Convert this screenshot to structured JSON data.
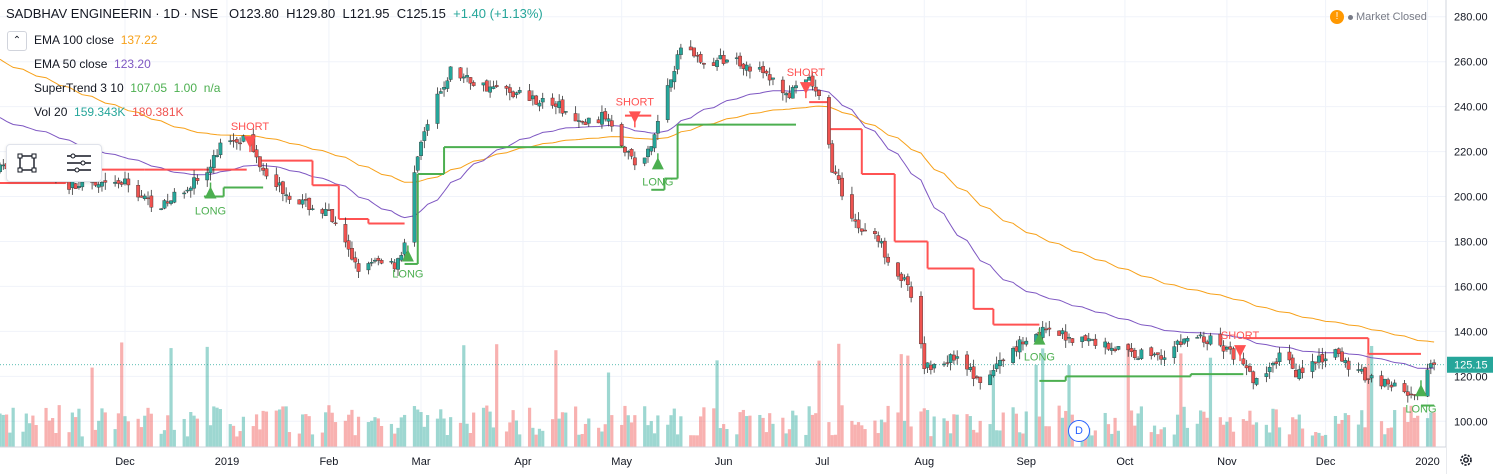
{
  "header": {
    "symbol": "SADBHAV ENGINEERIN · 1D · NSE",
    "o_label": "O",
    "o_value": "123.80",
    "h_label": "H",
    "h_value": "129.80",
    "l_label": "L",
    "l_value": "121.95",
    "c_label": "C",
    "c_value": "125.15",
    "change": "+1.40 (+1.13%)"
  },
  "indicators": [
    {
      "name": "EMA 100 close",
      "value": "137.22",
      "color": "#f7a11a"
    },
    {
      "name": "EMA 50 close",
      "value": "123.20",
      "color": "#7e57c2"
    },
    {
      "name": "SuperTrend 3 10",
      "value": "107.05",
      "value2": "1.00",
      "value3": "n/a",
      "color": "#4caf50"
    },
    {
      "name": "Vol 20",
      "value": "159.343K",
      "value2": "180.381K",
      "color": "#26a69a",
      "color2": "#ef5350"
    }
  ],
  "market_status": "Market Closed",
  "last_price_label": "125.15",
  "colors": {
    "up": "#26a69a",
    "down": "#ef5350",
    "ema100": "#f7a11a",
    "ema50": "#7e57c2",
    "supertrend_up": "#4caf50",
    "supertrend_down": "#ff5252",
    "grid": "#f0f3fa"
  },
  "icons": [
    "collapse-icon",
    "rectangle-tool-icon",
    "menu-lines-icon",
    "warning-icon",
    "settings-gear-icon",
    "dividend-badge"
  ],
  "dividend_badge": "D",
  "chart_data": {
    "type": "candlestick",
    "title": "SADBHAV ENGINEERIN · 1D · NSE",
    "y_ticks": [
      "280.00",
      "260.00",
      "240.00",
      "220.00",
      "200.00",
      "180.00",
      "160.00",
      "140.00",
      "120.00",
      "100.00"
    ],
    "ylim": [
      93,
      283
    ],
    "x_ticks": [
      "Dec",
      "2019",
      "Feb",
      "Mar",
      "Apr",
      "May",
      "Jun",
      "Jul",
      "Aug",
      "Sep",
      "Oct",
      "Nov",
      "Dec",
      "2020"
    ],
    "x_tick_days": [
      38,
      69,
      100,
      128,
      159,
      189,
      220,
      250,
      281,
      312,
      342,
      373,
      403,
      434
    ],
    "x_range_days": [
      0,
      439
    ],
    "price_anchors": [
      {
        "d": 0,
        "p": 212
      },
      {
        "d": 10,
        "p": 220
      },
      {
        "d": 20,
        "p": 205
      },
      {
        "d": 30,
        "p": 204
      },
      {
        "d": 38,
        "p": 206
      },
      {
        "d": 45,
        "p": 198
      },
      {
        "d": 50,
        "p": 196
      },
      {
        "d": 57,
        "p": 205
      },
      {
        "d": 63,
        "p": 210
      },
      {
        "d": 68,
        "p": 226
      },
      {
        "d": 74,
        "p": 226
      },
      {
        "d": 80,
        "p": 213
      },
      {
        "d": 86,
        "p": 203
      },
      {
        "d": 92,
        "p": 197
      },
      {
        "d": 100,
        "p": 192
      },
      {
        "d": 106,
        "p": 175
      },
      {
        "d": 110,
        "p": 167
      },
      {
        "d": 116,
        "p": 172
      },
      {
        "d": 120,
        "p": 170
      },
      {
        "d": 123,
        "p": 178
      },
      {
        "d": 127,
        "p": 220
      },
      {
        "d": 132,
        "p": 240
      },
      {
        "d": 137,
        "p": 256
      },
      {
        "d": 145,
        "p": 250
      },
      {
        "d": 160,
        "p": 245
      },
      {
        "d": 170,
        "p": 240
      },
      {
        "d": 176,
        "p": 232
      },
      {
        "d": 185,
        "p": 236
      },
      {
        "d": 190,
        "p": 222
      },
      {
        "d": 194,
        "p": 212
      },
      {
        "d": 198,
        "p": 222
      },
      {
        "d": 203,
        "p": 250
      },
      {
        "d": 208,
        "p": 270
      },
      {
        "d": 214,
        "p": 258
      },
      {
        "d": 222,
        "p": 262
      },
      {
        "d": 232,
        "p": 255
      },
      {
        "d": 240,
        "p": 245
      },
      {
        "d": 246,
        "p": 252
      },
      {
        "d": 250,
        "p": 240
      },
      {
        "d": 253,
        "p": 213
      },
      {
        "d": 257,
        "p": 198
      },
      {
        "d": 261,
        "p": 186
      },
      {
        "d": 266,
        "p": 183
      },
      {
        "d": 272,
        "p": 168
      },
      {
        "d": 276,
        "p": 160
      },
      {
        "d": 279,
        "p": 140
      },
      {
        "d": 281,
        "p": 124
      },
      {
        "d": 286,
        "p": 126
      },
      {
        "d": 292,
        "p": 130
      },
      {
        "d": 298,
        "p": 115
      },
      {
        "d": 302,
        "p": 123
      },
      {
        "d": 310,
        "p": 135
      },
      {
        "d": 316,
        "p": 140
      },
      {
        "d": 324,
        "p": 138
      },
      {
        "d": 334,
        "p": 135
      },
      {
        "d": 344,
        "p": 130
      },
      {
        "d": 354,
        "p": 130
      },
      {
        "d": 362,
        "p": 138
      },
      {
        "d": 370,
        "p": 135
      },
      {
        "d": 376,
        "p": 128
      },
      {
        "d": 381,
        "p": 118
      },
      {
        "d": 386,
        "p": 122
      },
      {
        "d": 390,
        "p": 133
      },
      {
        "d": 394,
        "p": 122
      },
      {
        "d": 400,
        "p": 126
      },
      {
        "d": 406,
        "p": 130
      },
      {
        "d": 412,
        "p": 122
      },
      {
        "d": 420,
        "p": 118
      },
      {
        "d": 428,
        "p": 113
      },
      {
        "d": 431,
        "p": 110
      },
      {
        "d": 434,
        "p": 122
      },
      {
        "d": 436,
        "p": 125.15
      }
    ],
    "supertrend": [
      {
        "d1": 0,
        "d2": 20,
        "v": 206,
        "trend": "down"
      },
      {
        "d1": 20,
        "d2": 44,
        "v": 212,
        "trend": "down"
      },
      {
        "d1": 44,
        "d2": 62,
        "v": 212,
        "trend": "down"
      },
      {
        "d1": 62,
        "d2": 75,
        "v": 212,
        "trend": "down"
      },
      {
        "d1": 62,
        "d2": 68,
        "v": 200,
        "trend": "up"
      },
      {
        "d1": 68,
        "d2": 80,
        "v": 204,
        "trend": "up"
      },
      {
        "d1": 79,
        "d2": 95,
        "v": 216,
        "trend": "down"
      },
      {
        "d1": 95,
        "d2": 103,
        "v": 205,
        "trend": "down"
      },
      {
        "d1": 103,
        "d2": 112,
        "v": 190,
        "trend": "down"
      },
      {
        "d1": 112,
        "d2": 123,
        "v": 188,
        "trend": "down"
      },
      {
        "d1": 123,
        "d2": 127,
        "v": 170,
        "trend": "up"
      },
      {
        "d1": 127,
        "d2": 135,
        "v": 210,
        "trend": "up"
      },
      {
        "d1": 135,
        "d2": 190,
        "v": 222,
        "trend": "up"
      },
      {
        "d1": 190,
        "d2": 198,
        "v": 236,
        "trend": "down"
      },
      {
        "d1": 198,
        "d2": 202,
        "v": 203,
        "trend": "up"
      },
      {
        "d1": 202,
        "d2": 206,
        "v": 208,
        "trend": "up"
      },
      {
        "d1": 206,
        "d2": 242,
        "v": 232,
        "trend": "up"
      },
      {
        "d1": 246,
        "d2": 252,
        "v": 242,
        "trend": "down"
      },
      {
        "d1": 252,
        "d2": 262,
        "v": 230,
        "trend": "down"
      },
      {
        "d1": 262,
        "d2": 272,
        "v": 210,
        "trend": "down"
      },
      {
        "d1": 272,
        "d2": 282,
        "v": 180,
        "trend": "down"
      },
      {
        "d1": 282,
        "d2": 296,
        "v": 168,
        "trend": "down"
      },
      {
        "d1": 296,
        "d2": 302,
        "v": 150,
        "trend": "down"
      },
      {
        "d1": 302,
        "d2": 316,
        "v": 143,
        "trend": "down"
      },
      {
        "d1": 316,
        "d2": 324,
        "v": 118,
        "trend": "up"
      },
      {
        "d1": 324,
        "d2": 362,
        "v": 120,
        "trend": "up"
      },
      {
        "d1": 362,
        "d2": 378,
        "v": 121,
        "trend": "up"
      },
      {
        "d1": 378,
        "d2": 416,
        "v": 137,
        "trend": "down"
      },
      {
        "d1": 416,
        "d2": 432,
        "v": 130,
        "trend": "down"
      },
      {
        "d1": 432,
        "d2": 436,
        "v": 107,
        "trend": "up"
      }
    ],
    "signals": [
      {
        "type": "LONG",
        "d": 64,
        "p": 200
      },
      {
        "type": "SHORT",
        "d": 76,
        "p": 226
      },
      {
        "type": "LONG",
        "d": 124,
        "p": 172
      },
      {
        "type": "SHORT",
        "d": 193,
        "p": 237
      },
      {
        "type": "LONG",
        "d": 200,
        "p": 213
      },
      {
        "type": "SHORT",
        "d": 245,
        "p": 250
      },
      {
        "type": "LONG",
        "d": 316,
        "p": 135
      },
      {
        "type": "SHORT",
        "d": 377,
        "p": 133
      },
      {
        "type": "LONG",
        "d": 432,
        "p": 112
      }
    ],
    "ema50_start": 236,
    "ema100_start": 262
  }
}
